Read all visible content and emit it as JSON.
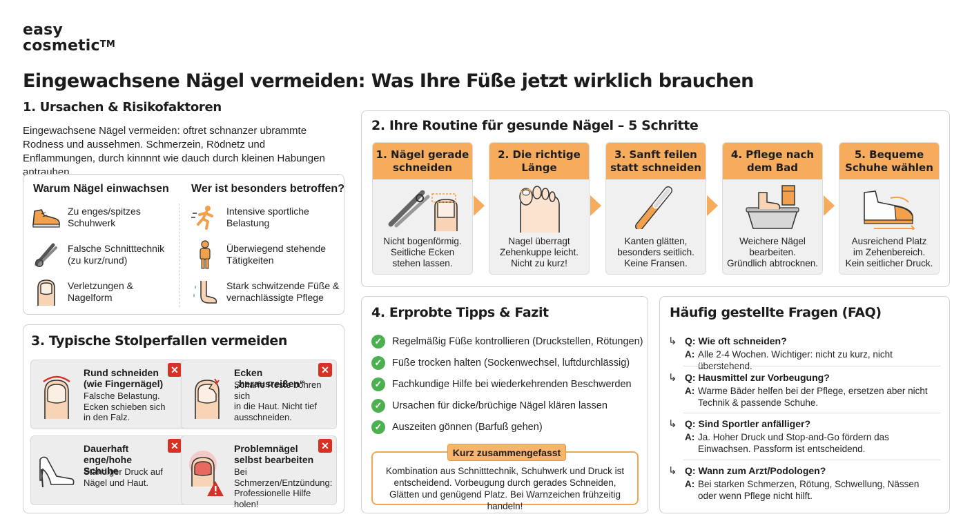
{
  "brand": {
    "line1": "easy",
    "line2": "cosmetic",
    "tm": "TM"
  },
  "title": "Eingewachsene Nägel vermeiden: Was Ihre Füße jetzt wirklich brauchen",
  "section1": {
    "heading": "1. Ursachen & Risikofaktoren",
    "intro": "Eingewachsene Nägel vermeiden: oftret schnanzer ubrammte Rodness und aussehmen. Schmerzein, Rödnetz und Enflammungen, durch kinnnnt wie dauch durch kleinen Habungen antrauhen.",
    "why": {
      "heading": "Warum Nägel einwachsen",
      "items": [
        {
          "icon": "shoe-icon",
          "text": "Zu enges/spitzes Schuhwerk"
        },
        {
          "icon": "nail-clipper-icon",
          "text": "Falsche Schnitttechnik (zu kurz/rund)"
        },
        {
          "icon": "toe-nail-icon",
          "text": "Verletzungen & Nagelform"
        }
      ]
    },
    "who": {
      "heading": "Wer ist besonders betroffen?",
      "items": [
        {
          "icon": "runner-icon",
          "text": "Intensive sportliche Belastung"
        },
        {
          "icon": "standing-person-icon",
          "text": "Überwiegend stehende Tätigkeiten"
        },
        {
          "icon": "sweaty-foot-icon",
          "text": "Stark schwitzende Füße & vernachlässigte Pflege"
        }
      ]
    }
  },
  "section2": {
    "heading": "2. Ihre Routine für gesunde Nägel – 5 Schritte",
    "steps": [
      {
        "title": "1. Nägel gerade\nschneiden",
        "text": "Nicht bogenförmig.\nSeitliche Ecken\nstehen lassen.",
        "icon": "clipper-straight-nail-icon"
      },
      {
        "title": "2. Die richtige\nLänge",
        "text": "Nagel überragt\nZehenkuppe leicht.\nNicht zu kurz!",
        "icon": "foot-toes-icon"
      },
      {
        "title": "3. Sanft feilen\nstatt schneiden",
        "text": "Kanten glätten,\nbesonders seitlich.\nKeine Fransen.",
        "icon": "nail-file-icon"
      },
      {
        "title": "4. Pflege nach\ndem Bad",
        "text": "Weichere Nägel\nbearbeiten.\nGründlich abtrocknen.",
        "icon": "foot-bath-icon"
      },
      {
        "title": "5. Bequeme\nSchuhe wählen",
        "text": "Ausreichend Platz\nim Zehenbereich.\nKein seitlicher Druck.",
        "icon": "comfort-shoe-icon"
      }
    ]
  },
  "section3": {
    "heading": "3. Typische Stolperfallen vermeiden",
    "cards": [
      {
        "title": "Rund schneiden\n(wie Fingernägel)",
        "text": "Falsche Belastung.\nEcken schieben sich\nin den Falz.",
        "icon": "round-nail-icon"
      },
      {
        "title": "Ecken „herausreißen“",
        "text": "Scharfe Reste bohren sich\nin die Haut. Nicht tief\nausschneiden.",
        "icon": "torn-corner-icon"
      },
      {
        "title": "Dauerhaft\nenge/hohe Schuhe",
        "text": "Ständiger Druck auf\nNägel und Haut.",
        "icon": "high-heel-icon"
      },
      {
        "title": "Problemnägel\nselbst bearbeiten",
        "text": "Bei Schmerzen/Entzündung:\nProfessionelle Hilfe holen!",
        "icon": "inflamed-toe-warning-icon"
      }
    ],
    "close_symbol": "✕"
  },
  "section4": {
    "heading": "4. Erprobte Tipps & Fazit",
    "tips": [
      "Regelmäßig Füße kontrollieren (Druckstellen, Rötungen)",
      "Füße trocken halten (Sockenwechsel, luftdurchlässig)",
      "Fachkundige Hilfe bei wiederkehrenden Beschwerden",
      "Ursachen für dicke/brüchige Nägel klären lassen",
      "Auszeiten gönnen (Barfuß gehen)"
    ],
    "check_symbol": "✓",
    "summary": {
      "label": "Kurz zusammengefasst",
      "text": "Kombination aus Schnitttechnik, Schuhwerk und Druck ist entscheidend. Vorbeugung durch gerades Schneiden, Glätten und genügend Platz. Bei Warnzeichen frühzeitig handeln!"
    }
  },
  "faq": {
    "heading": "Häufig gestellte Fragen (FAQ)",
    "arrow_symbol": "↳",
    "items": [
      {
        "q": "Q: Wie oft schneiden?",
        "a_label": "A:",
        "a": "Alle 2-4 Wochen. Wichtiger: nicht zu kurz, nicht überstehend."
      },
      {
        "q": "Q: Hausmittel zur Vorbeugung?",
        "a_label": "A:",
        "a": "Warme Bäder helfen bei der Pflege, ersetzen aber nicht Technik & passende Schuhe."
      },
      {
        "q": "Q: Sind Sportler anfälliger?",
        "a_label": "A:",
        "a": "Ja. Hoher Druck und Stop-and-Go fördern das Einwachsen. Passform ist entscheidend."
      },
      {
        "q": "Q: Wann zum Arzt/Podologen?",
        "a_label": "A:",
        "a": "Bei starken Schmerzen, Rötung, Schwellung, Nässen oder wenn Pflege nicht hilft."
      }
    ]
  },
  "colors": {
    "accent_orange": "#f6ab5d",
    "check_green": "#4caf50",
    "warning_red": "#d93025",
    "card_gray": "#ededed"
  }
}
